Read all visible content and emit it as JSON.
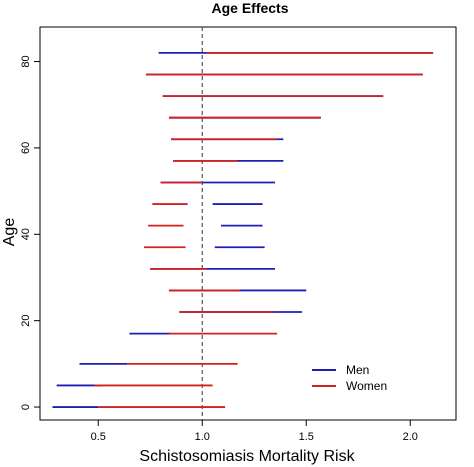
{
  "chart_data": {
    "type": "interval",
    "title": "Age Effects",
    "xlabel": "Schistosomiasis Mortality Risk",
    "ylabel": "Age",
    "xlim": [
      0.22,
      2.22
    ],
    "ylim": [
      -3,
      88
    ],
    "xticks": [
      0.5,
      1.0,
      1.5,
      2.0
    ],
    "xtick_labels": [
      "0.5",
      "1.0",
      "1.5",
      "2.0"
    ],
    "yticks": [
      0,
      20,
      40,
      60,
      80
    ],
    "ytick_labels": [
      "0",
      "20",
      "40",
      "60",
      "80"
    ],
    "reference_line": {
      "x": 1.0,
      "style": "dashed"
    },
    "legend": {
      "position": "bottom-right",
      "entries": [
        "Men",
        "Women"
      ]
    },
    "series": [
      {
        "name": "Men",
        "color": "#1f1fb4",
        "intervals": [
          {
            "age": 0,
            "low": 0.28,
            "high": 0.5
          },
          {
            "age": 5,
            "low": 0.3,
            "high": 0.52
          },
          {
            "age": 10,
            "low": 0.41,
            "high": 0.64
          },
          {
            "age": 17,
            "low": 0.65,
            "high": 0.85
          },
          {
            "age": 22,
            "low": 0.89,
            "high": 1.48
          },
          {
            "age": 27,
            "low": 0.84,
            "high": 1.5
          },
          {
            "age": 32,
            "low": 0.75,
            "high": 1.35
          },
          {
            "age": 37,
            "low": 1.06,
            "high": 1.3
          },
          {
            "age": 42,
            "low": 1.09,
            "high": 1.29
          },
          {
            "age": 47,
            "low": 1.05,
            "high": 1.29
          },
          {
            "age": 52,
            "low": 0.8,
            "high": 1.35
          },
          {
            "age": 57,
            "low": 0.86,
            "high": 1.39
          },
          {
            "age": 62,
            "low": 0.85,
            "high": 1.39
          },
          {
            "age": 67,
            "low": 0.84,
            "high": 1.57
          },
          {
            "age": 72,
            "low": 0.81,
            "high": 1.87
          },
          {
            "age": 77,
            "low": 0.73,
            "high": 2.06
          },
          {
            "age": 82,
            "low": 0.79,
            "high": 2.11
          }
        ]
      },
      {
        "name": "Women",
        "color": "#d42020",
        "intervals": [
          {
            "age": 0,
            "low": 0.5,
            "high": 1.11
          },
          {
            "age": 5,
            "low": 0.48,
            "high": 1.05
          },
          {
            "age": 10,
            "low": 0.64,
            "high": 1.17
          },
          {
            "age": 17,
            "low": 0.84,
            "high": 1.36
          },
          {
            "age": 22,
            "low": 0.89,
            "high": 1.34
          },
          {
            "age": 27,
            "low": 0.84,
            "high": 1.18
          },
          {
            "age": 32,
            "low": 0.75,
            "high": 1.02
          },
          {
            "age": 37,
            "low": 0.72,
            "high": 0.92
          },
          {
            "age": 42,
            "low": 0.74,
            "high": 0.91
          },
          {
            "age": 47,
            "low": 0.76,
            "high": 0.93
          },
          {
            "age": 52,
            "low": 0.8,
            "high": 1.0
          },
          {
            "age": 57,
            "low": 0.86,
            "high": 1.17
          },
          {
            "age": 62,
            "low": 0.85,
            "high": 1.36
          },
          {
            "age": 67,
            "low": 0.84,
            "high": 1.57
          },
          {
            "age": 72,
            "low": 0.81,
            "high": 1.87
          },
          {
            "age": 77,
            "low": 0.73,
            "high": 2.06
          },
          {
            "age": 82,
            "low": 1.02,
            "high": 2.11
          }
        ]
      }
    ]
  }
}
